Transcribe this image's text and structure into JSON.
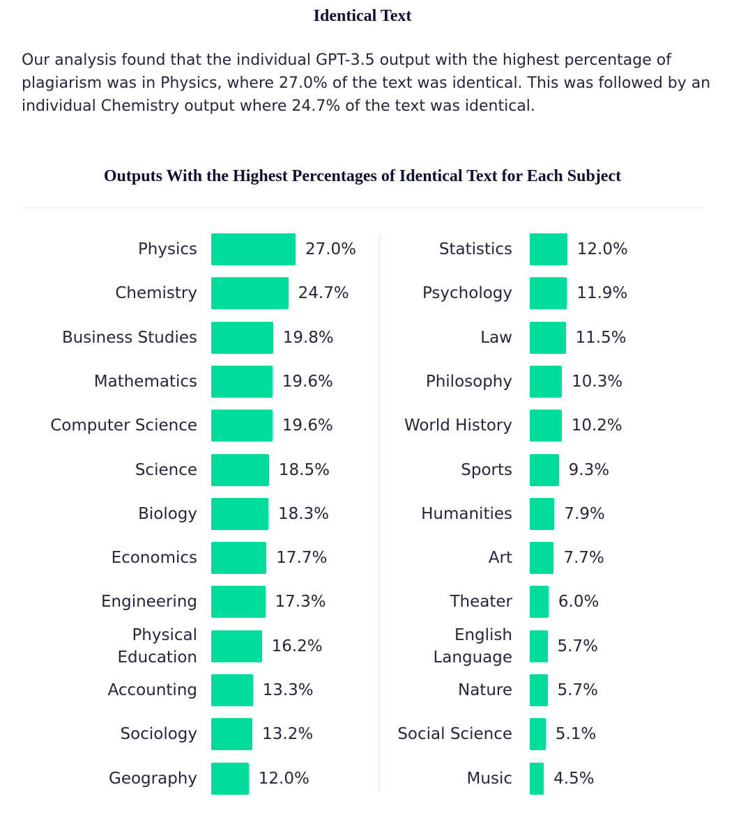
{
  "heading": "Identical Text",
  "intro": "Our analysis found that the individual GPT-3.5 output with the highest percentage of plagiarism was in Physics, where 27.0% of the text was identical. This was followed by an individual Chemistry output where 24.7% of the text was identical.",
  "chart_data": {
    "type": "bar",
    "orientation": "horizontal",
    "title": "Outputs With the Highest Percentages of Identical Text for Each Subject",
    "unit": "%",
    "bar_color": "#00dc9a",
    "columns": [
      {
        "categories": [
          "Physics",
          "Chemistry",
          "Business Studies",
          "Mathematics",
          "Computer Science",
          "Science",
          "Biology",
          "Economics",
          "Engineering",
          "Physical\nEducation",
          "Accounting",
          "Sociology",
          "Geography"
        ],
        "values": [
          27.0,
          24.7,
          19.8,
          19.6,
          19.6,
          18.5,
          18.3,
          17.7,
          17.3,
          16.2,
          13.3,
          13.2,
          12.0
        ],
        "labels": [
          "27.0%",
          "24.7%",
          "19.8%",
          "19.6%",
          "19.6%",
          "18.5%",
          "18.3%",
          "17.7%",
          "17.3%",
          "16.2%",
          "13.3%",
          "13.2%",
          "12.0%"
        ]
      },
      {
        "categories": [
          "Statistics",
          "Psychology",
          "Law",
          "Philosophy",
          "World History",
          "Sports",
          "Humanities",
          "Art",
          "Theater",
          "English\nLanguage",
          "Nature",
          "Social Science",
          "Music"
        ],
        "values": [
          12.0,
          11.9,
          11.5,
          10.3,
          10.2,
          9.3,
          7.9,
          7.7,
          6.0,
          5.7,
          5.7,
          5.1,
          4.5
        ],
        "labels": [
          "12.0%",
          "11.9%",
          "11.5%",
          "10.3%",
          "10.2%",
          "9.3%",
          "7.9%",
          "7.7%",
          "6.0%",
          "5.7%",
          "5.7%",
          "5.1%",
          "4.5%"
        ]
      }
    ]
  }
}
